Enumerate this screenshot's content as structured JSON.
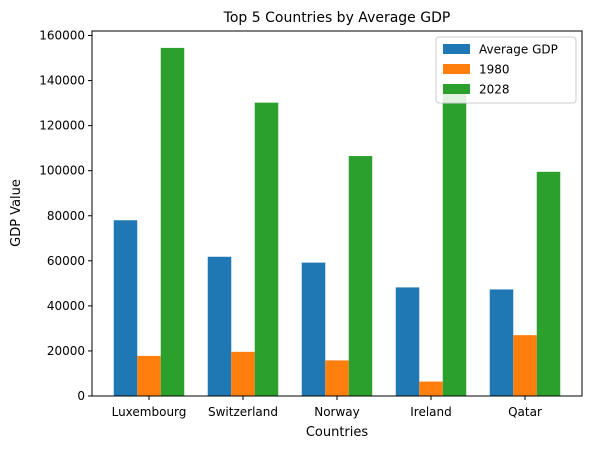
{
  "chart_data": {
    "type": "bar",
    "title": "Top 5 Countries by Average GDP",
    "xlabel": "Countries",
    "ylabel": "GDP Value",
    "categories": [
      "Luxembourg",
      "Switzerland",
      "Norway",
      "Ireland",
      "Qatar"
    ],
    "series": [
      {
        "name": "Average GDP",
        "color": "#1f77b4",
        "values": [
          78000,
          61800,
          59200,
          48200,
          47300
        ]
      },
      {
        "name": "1980",
        "color": "#ff7f0e",
        "values": [
          17800,
          19600,
          15800,
          6400,
          27000
        ]
      },
      {
        "name": "2028",
        "color": "#2ca02c",
        "values": [
          154500,
          130200,
          106500,
          136500,
          99500
        ]
      }
    ],
    "ylim": [
      0,
      162000
    ],
    "yticks": [
      0,
      20000,
      40000,
      60000,
      80000,
      100000,
      120000,
      140000,
      160000
    ],
    "ytick_labels": [
      "0",
      "20000",
      "40000",
      "60000",
      "80000",
      "100000",
      "120000",
      "140000",
      "160000"
    ],
    "grid": false,
    "legend_position": "top-right"
  }
}
